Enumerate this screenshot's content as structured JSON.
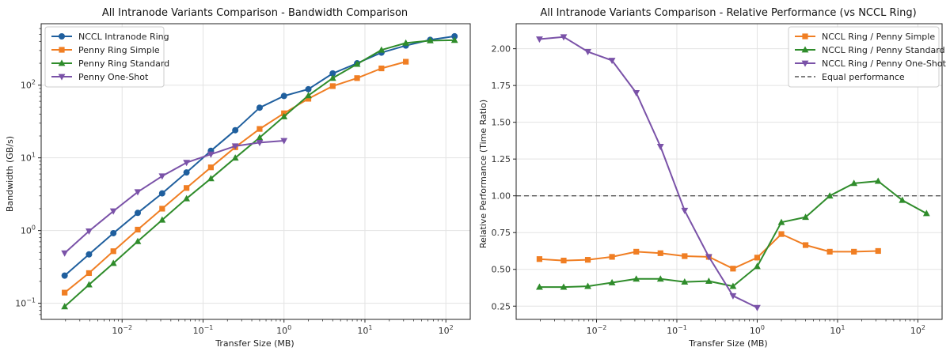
{
  "chart_data": [
    {
      "type": "line",
      "title": "All Intranode Variants Comparison - Bandwidth Comparison",
      "xlabel": "Transfer Size (MB)",
      "ylabel": "Bandwidth (GB/s)",
      "xscale": "log",
      "yscale": "log",
      "xlim": [
        0.001,
        200
      ],
      "ylim": [
        0.06,
        700
      ],
      "grid": true,
      "legend_position": "top-left",
      "x_ticks": [
        {
          "value": 0.01,
          "base": "10",
          "exp": "−2"
        },
        {
          "value": 0.1,
          "base": "10",
          "exp": "−1"
        },
        {
          "value": 1,
          "base": "10",
          "exp": "0"
        },
        {
          "value": 10,
          "base": "10",
          "exp": "1"
        },
        {
          "value": 100,
          "base": "10",
          "exp": "2"
        }
      ],
      "y_ticks": [
        {
          "value": 0.1,
          "base": "10",
          "exp": "−1"
        },
        {
          "value": 1,
          "base": "10",
          "exp": "0"
        },
        {
          "value": 10,
          "base": "10",
          "exp": "1"
        },
        {
          "value": 100,
          "base": "10",
          "exp": "2"
        }
      ],
      "series": [
        {
          "name": "NCCL Intranode Ring",
          "color": "#1f5f9e",
          "marker": "circle",
          "x": [
            0.00195,
            0.0039,
            0.0078,
            0.0156,
            0.03125,
            0.0625,
            0.125,
            0.25,
            0.5,
            1,
            2,
            4,
            8,
            16,
            32,
            64,
            128
          ],
          "y": [
            0.24,
            0.47,
            0.92,
            1.75,
            3.25,
            6.3,
            12.5,
            24,
            49,
            71,
            88,
            145,
            200,
            280,
            350,
            420,
            470
          ]
        },
        {
          "name": "Penny Ring Simple",
          "color": "#f07e23",
          "marker": "square",
          "x": [
            0.00195,
            0.0039,
            0.0078,
            0.0156,
            0.03125,
            0.0625,
            0.125,
            0.25,
            0.5,
            1,
            2,
            4,
            8,
            16,
            32
          ],
          "y": [
            0.14,
            0.26,
            0.52,
            1.03,
            2.0,
            3.85,
            7.4,
            14,
            25,
            41,
            65,
            97,
            125,
            170,
            210
          ]
        },
        {
          "name": "Penny Ring Standard",
          "color": "#2f8c2b",
          "marker": "triangle-up",
          "x": [
            0.00195,
            0.0039,
            0.0078,
            0.0156,
            0.03125,
            0.0625,
            0.125,
            0.25,
            0.5,
            1,
            2,
            4,
            8,
            16,
            32,
            64,
            128
          ],
          "y": [
            0.09,
            0.18,
            0.355,
            0.71,
            1.4,
            2.75,
            5.2,
            10,
            19,
            37,
            72,
            125,
            195,
            305,
            380,
            410,
            415
          ]
        },
        {
          "name": "Penny One-Shot",
          "color": "#7a52a8",
          "marker": "triangle-down",
          "x": [
            0.00195,
            0.0039,
            0.0078,
            0.0156,
            0.03125,
            0.0625,
            0.125,
            0.25,
            0.5,
            1
          ],
          "y": [
            0.49,
            0.98,
            1.85,
            3.4,
            5.6,
            8.6,
            11.2,
            14.5,
            16.2,
            17.2
          ]
        }
      ]
    },
    {
      "type": "line",
      "title": "All Intranode Variants Comparison - Relative Performance (vs NCCL Ring)",
      "xlabel": "Transfer Size (MB)",
      "ylabel": "Relative Performance (Time Ratio)",
      "xscale": "log",
      "yscale": "linear",
      "xlim": [
        0.001,
        200
      ],
      "ylim": [
        0.16,
        2.17
      ],
      "grid": true,
      "legend_position": "top-right",
      "x_ticks": [
        {
          "value": 0.01,
          "base": "10",
          "exp": "−2"
        },
        {
          "value": 0.1,
          "base": "10",
          "exp": "−1"
        },
        {
          "value": 1,
          "base": "10",
          "exp": "0"
        },
        {
          "value": 10,
          "base": "10",
          "exp": "1"
        },
        {
          "value": 100,
          "base": "10",
          "exp": "2"
        }
      ],
      "y_ticks": [
        {
          "value": 0.25,
          "label": "0.25"
        },
        {
          "value": 0.5,
          "label": "0.50"
        },
        {
          "value": 0.75,
          "label": "0.75"
        },
        {
          "value": 1.0,
          "label": "1.00"
        },
        {
          "value": 1.25,
          "label": "1.25"
        },
        {
          "value": 1.5,
          "label": "1.50"
        },
        {
          "value": 1.75,
          "label": "1.75"
        },
        {
          "value": 2.0,
          "label": "2.00"
        }
      ],
      "reference_line": {
        "y": 1.0,
        "label": "Equal performance",
        "color": "#555555"
      },
      "series": [
        {
          "name": "NCCL Ring / Penny Simple",
          "color": "#f07e23",
          "marker": "square",
          "x": [
            0.00195,
            0.0039,
            0.0078,
            0.0156,
            0.03125,
            0.0625,
            0.125,
            0.25,
            0.5,
            1,
            2,
            4,
            8,
            16,
            32
          ],
          "y": [
            0.57,
            0.56,
            0.565,
            0.585,
            0.62,
            0.61,
            0.59,
            0.585,
            0.505,
            0.58,
            0.74,
            0.665,
            0.62,
            0.62,
            0.625
          ]
        },
        {
          "name": "NCCL Ring / Penny Standard",
          "color": "#2f8c2b",
          "marker": "triangle-up",
          "x": [
            0.00195,
            0.0039,
            0.0078,
            0.0156,
            0.03125,
            0.0625,
            0.125,
            0.25,
            0.5,
            1,
            2,
            4,
            8,
            16,
            32,
            64,
            128
          ],
          "y": [
            0.38,
            0.38,
            0.385,
            0.41,
            0.435,
            0.435,
            0.415,
            0.42,
            0.385,
            0.52,
            0.82,
            0.855,
            1.0,
            1.085,
            1.1,
            0.97,
            0.88
          ]
        },
        {
          "name": "NCCL Ring / Penny One-Shot",
          "color": "#7a52a8",
          "marker": "triangle-down",
          "x": [
            0.00195,
            0.0039,
            0.0078,
            0.0156,
            0.03125,
            0.0625,
            0.125,
            0.25,
            0.5,
            1
          ],
          "y": [
            2.065,
            2.08,
            1.98,
            1.92,
            1.7,
            1.335,
            0.9,
            0.585,
            0.32,
            0.24
          ]
        }
      ]
    }
  ]
}
